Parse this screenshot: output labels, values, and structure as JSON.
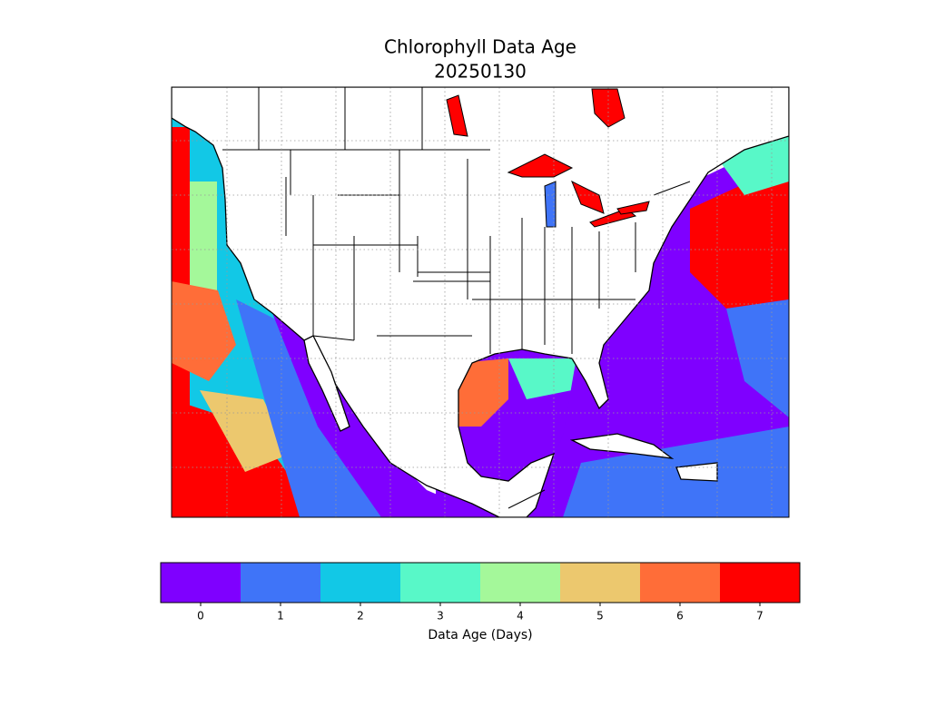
{
  "title": "Chlorophyll Data Age",
  "subtitle": "20250130",
  "colorbar": {
    "ticks": [
      0,
      1,
      2,
      3,
      4,
      5,
      6,
      7
    ],
    "colors": [
      "#7f00ff",
      "#3f74f8",
      "#12c8e6",
      "#58f8c8",
      "#a4f89a",
      "#ecc86e",
      "#ff6d38",
      "#ff0000"
    ],
    "label": "Data Age (Days)"
  }
}
